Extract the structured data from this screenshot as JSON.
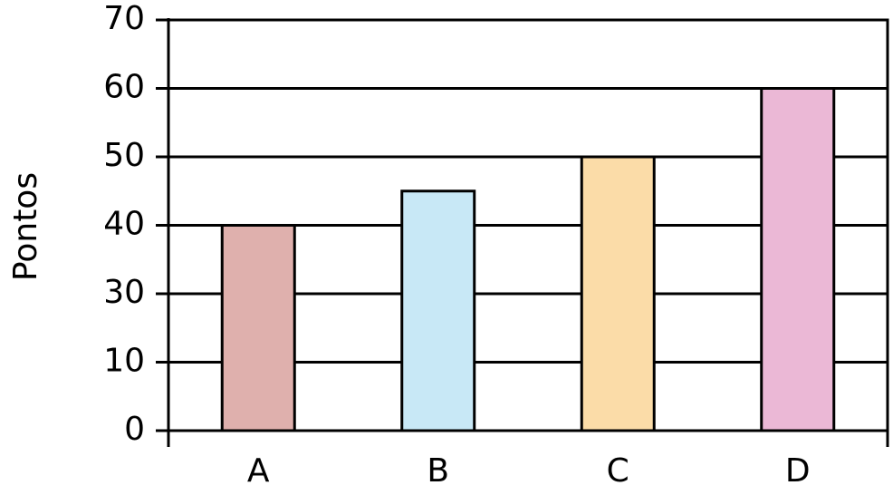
{
  "chart_data": {
    "type": "bar",
    "y_label": "Pontos",
    "categories": [
      "A",
      "B",
      "C",
      "D"
    ],
    "values": [
      40,
      45,
      50,
      60
    ],
    "colors": [
      "#dfb0ad",
      "#c8e8f6",
      "#fbdca8",
      "#ebb8d6"
    ],
    "ylim": [
      0,
      70
    ],
    "yticks": [
      0,
      10,
      30,
      40,
      50,
      60,
      70
    ],
    "grid": true
  }
}
